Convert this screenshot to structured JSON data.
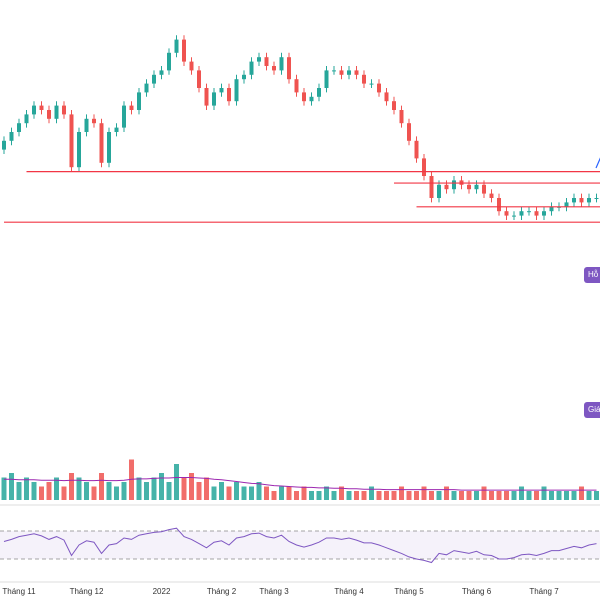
{
  "chart_data": {
    "type": "candlestick",
    "categories": [
      null,
      null,
      "Tháng 11",
      null,
      null,
      null,
      null,
      null,
      null,
      null,
      null,
      "Tháng 12",
      null,
      null,
      null,
      null,
      null,
      null,
      null,
      null,
      null,
      "2022",
      null,
      null,
      null,
      null,
      null,
      null,
      null,
      "Tháng 2",
      null,
      null,
      null,
      null,
      null,
      null,
      "Tháng 3",
      null,
      null,
      null,
      null,
      null,
      null,
      null,
      null,
      null,
      "Tháng 4",
      null,
      null,
      null,
      null,
      null,
      null,
      null,
      "Tháng 5",
      null,
      null,
      null,
      null,
      null,
      null,
      null,
      null,
      "Tháng 6",
      null,
      null,
      null,
      null,
      null,
      null,
      null,
      null,
      "Tháng 7",
      null,
      null,
      null,
      null,
      null,
      null,
      null
    ],
    "open": [
      66,
      68,
      70,
      72,
      74,
      76,
      75,
      73,
      76,
      74,
      62,
      70,
      73,
      72,
      63,
      70,
      71,
      76,
      75,
      79,
      81,
      83,
      84,
      88,
      91,
      86,
      84,
      80,
      76,
      79,
      80,
      77,
      82,
      83,
      86,
      87,
      85,
      84,
      87,
      82,
      79,
      77,
      78,
      80,
      84,
      84,
      83,
      84,
      83,
      81,
      81,
      79,
      77,
      75,
      72,
      68,
      64,
      60,
      55,
      58,
      57,
      59,
      58,
      57,
      58,
      56,
      55,
      52,
      51,
      51,
      52,
      52,
      51,
      52,
      53,
      53,
      54,
      55,
      54,
      55
    ],
    "high": [
      69,
      71,
      73,
      75,
      77,
      77,
      76,
      77,
      77,
      75,
      71,
      74,
      74,
      73,
      71,
      72,
      77,
      77,
      80,
      82,
      84,
      85,
      89,
      92,
      92,
      87,
      85,
      81,
      80,
      81,
      81,
      83,
      84,
      87,
      88,
      88,
      86,
      88,
      88,
      83,
      80,
      79,
      81,
      85,
      85,
      85,
      85,
      85,
      84,
      82,
      82,
      80,
      78,
      76,
      73,
      69,
      65,
      61,
      59,
      59,
      60,
      60,
      59,
      59,
      59,
      57,
      56,
      53,
      52,
      53,
      53,
      53,
      53,
      54,
      54,
      55,
      56,
      56,
      56,
      56
    ],
    "low": [
      65,
      67,
      69,
      71,
      73,
      74,
      72,
      72,
      73,
      61,
      61,
      69,
      71,
      62,
      62,
      69,
      70,
      74,
      74,
      78,
      80,
      82,
      83,
      87,
      85,
      83,
      79,
      75,
      75,
      78,
      76,
      76,
      81,
      82,
      85,
      84,
      83,
      83,
      81,
      78,
      76,
      76,
      77,
      79,
      83,
      82,
      82,
      82,
      80,
      80,
      78,
      76,
      74,
      71,
      67,
      63,
      59,
      54,
      54,
      56,
      56,
      57,
      56,
      56,
      55,
      54,
      51,
      50,
      50,
      50,
      51,
      50,
      50,
      51,
      52,
      52,
      53,
      53,
      53,
      54
    ],
    "close": [
      68,
      70,
      72,
      74,
      76,
      75,
      73,
      76,
      74,
      62,
      70,
      73,
      72,
      63,
      70,
      71,
      76,
      75,
      79,
      81,
      83,
      84,
      88,
      91,
      86,
      84,
      80,
      76,
      79,
      80,
      77,
      82,
      83,
      86,
      87,
      85,
      84,
      87,
      82,
      79,
      77,
      78,
      80,
      84,
      84,
      83,
      84,
      83,
      81,
      81,
      79,
      77,
      75,
      72,
      68,
      64,
      60,
      55,
      58,
      57,
      59,
      58,
      57,
      58,
      56,
      55,
      52,
      51,
      51,
      52,
      52,
      51,
      52,
      53,
      53,
      54,
      55,
      54,
      55,
      55
    ],
    "ylim": [
      0,
      100
    ],
    "up_color": "#26a69a",
    "down_color": "#ef5350",
    "levels": [
      61,
      58.4,
      53,
      49.5
    ],
    "level_start_index": [
      3,
      52,
      55,
      0
    ],
    "level_color": "#f23645",
    "volume": [
      5,
      6,
      4,
      5,
      4,
      3,
      4,
      5,
      3,
      6,
      5,
      4,
      3,
      6,
      4,
      3,
      4,
      9,
      5,
      4,
      5,
      6,
      4,
      8,
      5,
      6,
      4,
      5,
      3,
      4,
      3,
      4,
      3,
      3,
      4,
      3,
      2,
      3,
      3,
      2,
      3,
      2,
      2,
      3,
      2,
      3,
      2,
      2,
      2,
      3,
      2,
      2,
      2,
      3,
      2,
      2,
      3,
      2,
      2,
      3,
      2,
      2,
      2,
      2,
      3,
      2,
      2,
      2,
      2,
      3,
      2,
      2,
      3,
      2,
      2,
      2,
      2,
      3,
      2,
      2
    ],
    "volume_ma": [
      4.6,
      4.6,
      4.5,
      4.5,
      4.5,
      4.4,
      4.4,
      4.4,
      4.3,
      4.4,
      4.4,
      4.3,
      4.3,
      4.4,
      4.3,
      4.3,
      4.4,
      4.6,
      4.7,
      4.7,
      4.8,
      4.9,
      4.9,
      5.0,
      5.0,
      5.0,
      4.9,
      4.8,
      4.6,
      4.5,
      4.3,
      4.1,
      3.9,
      3.7,
      3.6,
      3.4,
      3.2,
      3.1,
      3.0,
      2.9,
      2.8,
      2.8,
      2.7,
      2.7,
      2.6,
      2.6,
      2.5,
      2.5,
      2.4,
      2.4,
      2.4,
      2.3,
      2.3,
      2.3,
      2.3,
      2.3,
      2.3,
      2.3,
      2.3,
      2.3,
      2.3,
      2.2,
      2.2,
      2.2,
      2.2,
      2.2,
      2.2,
      2.2,
      2.2,
      2.2,
      2.2,
      2.2,
      2.2,
      2.2,
      2.2,
      2.2,
      2.2,
      2.2,
      2.2,
      2.2
    ],
    "volume_lim": [
      0,
      10
    ],
    "volume_ma_color": "#9c27b0",
    "rsi": [
      55,
      58,
      62,
      64,
      66,
      63,
      58,
      62,
      57,
      35,
      50,
      56,
      54,
      38,
      50,
      52,
      60,
      58,
      64,
      66,
      68,
      69,
      72,
      74,
      62,
      58,
      52,
      46,
      54,
      56,
      50,
      60,
      62,
      66,
      67,
      62,
      60,
      64,
      55,
      50,
      47,
      50,
      54,
      60,
      60,
      58,
      60,
      57,
      53,
      53,
      50,
      46,
      42,
      38,
      33,
      30,
      28,
      25,
      38,
      36,
      42,
      40,
      38,
      41,
      36,
      35,
      30,
      30,
      32,
      36,
      37,
      35,
      38,
      42,
      42,
      45,
      48,
      46,
      50,
      52
    ],
    "rsi_lim": [
      0,
      100
    ],
    "rsi_bands": [
      30,
      70
    ],
    "rsi_color": "#7e57c2",
    "badges": [
      "Hỗ",
      "Giá"
    ],
    "badge_color": "#7e57c2"
  }
}
